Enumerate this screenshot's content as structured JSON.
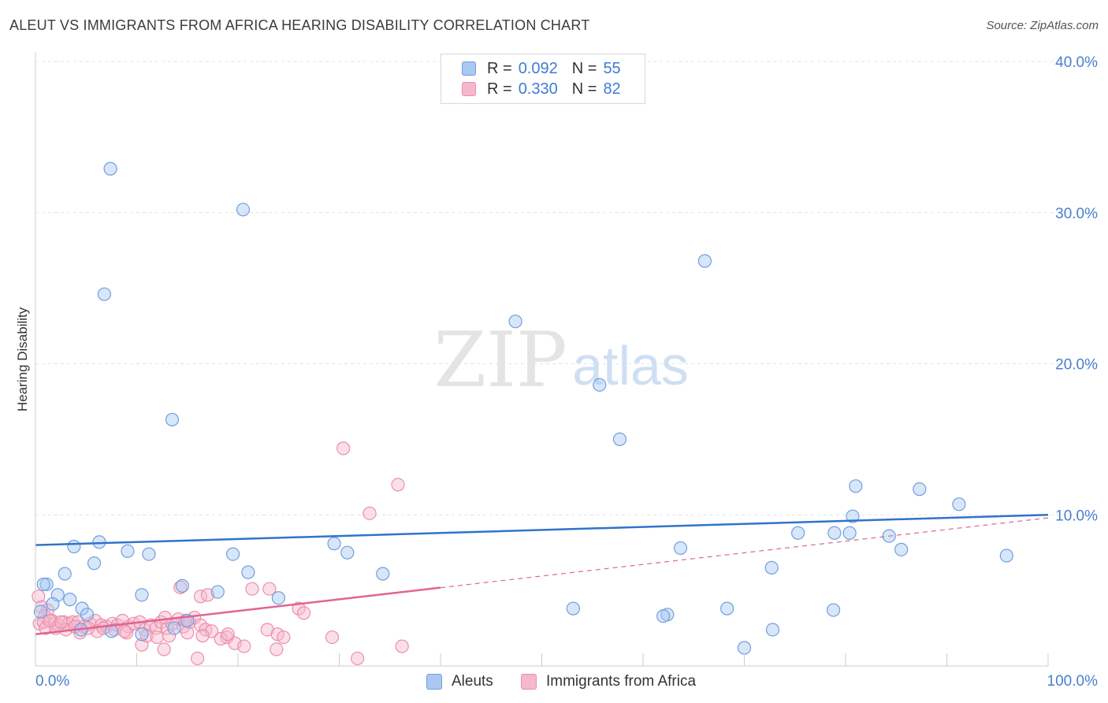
{
  "title": "ALEUT VS IMMIGRANTS FROM AFRICA HEARING DISABILITY CORRELATION CHART",
  "source": "Source: ZipAtlas.com",
  "watermark": {
    "zip": "ZIP",
    "atlas": "atlas"
  },
  "legend": {
    "rows": [
      {
        "r_label": "R =",
        "r_value": "0.092",
        "n_label": "N =",
        "n_value": "55"
      },
      {
        "r_label": "R =",
        "r_value": "0.330",
        "n_label": "N =",
        "n_value": "82"
      }
    ]
  },
  "bottom_legend": {
    "series1": "Aleuts",
    "series2": "Immigrants from Africa"
  },
  "colors": {
    "aleut_fill": "#a9c8f2",
    "aleut_stroke": "#6f9fe0",
    "aleut_line": "#2f74c9",
    "africa_fill": "#f6b8cb",
    "africa_stroke": "#ec8eab",
    "africa_line": "#e2648f",
    "grid": "#e3e3e3",
    "tick_text": "#4a7fcf"
  },
  "chart_data": {
    "type": "scatter",
    "title": "ALEUT VS IMMIGRANTS FROM AFRICA HEARING DISABILITY CORRELATION CHART",
    "xlabel": "",
    "ylabel": "Hearing Disability",
    "xlim": [
      0,
      100
    ],
    "ylim": [
      0,
      40
    ],
    "x_tick_labels": [
      "0.0%",
      "100.0%"
    ],
    "y_ticks": [
      10,
      20,
      30,
      40
    ],
    "y_tick_labels": [
      "10.0%",
      "20.0%",
      "30.0%",
      "40.0%"
    ],
    "series": [
      {
        "name": "Aleuts",
        "r": 0.092,
        "n": 55,
        "trend": {
          "x": [
            0,
            100
          ],
          "y": [
            8.0,
            10.0
          ],
          "dashed_after": null
        },
        "points": [
          [
            7.4,
            32.9
          ],
          [
            20.5,
            30.2
          ],
          [
            6.8,
            24.6
          ],
          [
            66.1,
            26.8
          ],
          [
            47.4,
            22.8
          ],
          [
            55.7,
            18.6
          ],
          [
            57.7,
            15.0
          ],
          [
            13.5,
            16.3
          ],
          [
            81.0,
            11.9
          ],
          [
            87.3,
            11.7
          ],
          [
            91.2,
            10.7
          ],
          [
            80.7,
            9.9
          ],
          [
            75.3,
            8.8
          ],
          [
            78.9,
            8.8
          ],
          [
            80.4,
            8.8
          ],
          [
            84.3,
            8.6
          ],
          [
            95.9,
            7.3
          ],
          [
            85.5,
            7.7
          ],
          [
            63.7,
            7.8
          ],
          [
            72.7,
            6.5
          ],
          [
            3.8,
            7.9
          ],
          [
            6.3,
            8.2
          ],
          [
            9.1,
            7.6
          ],
          [
            11.2,
            7.4
          ],
          [
            19.5,
            7.4
          ],
          [
            29.5,
            8.1
          ],
          [
            30.8,
            7.5
          ],
          [
            5.8,
            6.8
          ],
          [
            21.0,
            6.2
          ],
          [
            34.3,
            6.1
          ],
          [
            1.1,
            5.4
          ],
          [
            2.2,
            4.7
          ],
          [
            0.8,
            5.4
          ],
          [
            2.9,
            6.1
          ],
          [
            14.5,
            5.3
          ],
          [
            18.0,
            4.9
          ],
          [
            10.5,
            4.7
          ],
          [
            24.0,
            4.5
          ],
          [
            1.7,
            4.1
          ],
          [
            3.4,
            4.4
          ],
          [
            4.6,
            3.8
          ],
          [
            0.5,
            3.6
          ],
          [
            5.1,
            3.4
          ],
          [
            53.1,
            3.8
          ],
          [
            68.3,
            3.8
          ],
          [
            78.8,
            3.7
          ],
          [
            62.4,
            3.4
          ],
          [
            62.0,
            3.3
          ],
          [
            72.8,
            2.4
          ],
          [
            70.0,
            1.2
          ],
          [
            7.5,
            2.3
          ],
          [
            10.5,
            2.1
          ],
          [
            13.7,
            2.5
          ],
          [
            4.5,
            2.4
          ],
          [
            15.0,
            3.0
          ]
        ]
      },
      {
        "name": "Immigrants from Africa",
        "r": 0.33,
        "n": 82,
        "trend": {
          "x": [
            0,
            100
          ],
          "y": [
            2.1,
            9.8
          ],
          "solid_until_x": 40
        },
        "points": [
          [
            30.4,
            14.4
          ],
          [
            35.8,
            12.0
          ],
          [
            33.0,
            10.1
          ],
          [
            14.3,
            5.2
          ],
          [
            16.3,
            4.6
          ],
          [
            17.0,
            4.7
          ],
          [
            21.4,
            5.1
          ],
          [
            23.1,
            5.1
          ],
          [
            26.0,
            3.8
          ],
          [
            26.5,
            3.5
          ],
          [
            0.3,
            4.6
          ],
          [
            0.6,
            3.9
          ],
          [
            1.2,
            3.7
          ],
          [
            0.9,
            3.3
          ],
          [
            1.6,
            3.0
          ],
          [
            0.4,
            2.8
          ],
          [
            0.8,
            2.9
          ],
          [
            1.9,
            2.8
          ],
          [
            2.3,
            2.7
          ],
          [
            2.8,
            2.9
          ],
          [
            3.3,
            2.8
          ],
          [
            3.7,
            2.9
          ],
          [
            4.2,
            2.9
          ],
          [
            4.8,
            2.6
          ],
          [
            5.4,
            2.8
          ],
          [
            5.9,
            3.0
          ],
          [
            6.5,
            2.7
          ],
          [
            7.0,
            2.6
          ],
          [
            7.6,
            2.8
          ],
          [
            8.1,
            2.7
          ],
          [
            8.6,
            3.0
          ],
          [
            9.2,
            2.6
          ],
          [
            9.7,
            2.8
          ],
          [
            10.3,
            2.9
          ],
          [
            10.8,
            2.4
          ],
          [
            11.4,
            2.7
          ],
          [
            11.9,
            2.5
          ],
          [
            12.4,
            2.9
          ],
          [
            13.0,
            2.5
          ],
          [
            13.5,
            2.8
          ],
          [
            14.1,
            3.1
          ],
          [
            14.6,
            2.6
          ],
          [
            15.2,
            2.9
          ],
          [
            15.7,
            3.2
          ],
          [
            16.3,
            2.7
          ],
          [
            16.8,
            2.4
          ],
          [
            17.4,
            2.3
          ],
          [
            18.9,
            1.9
          ],
          [
            19.7,
            1.5
          ],
          [
            22.9,
            2.4
          ],
          [
            23.9,
            2.1
          ],
          [
            24.5,
            1.9
          ],
          [
            23.8,
            1.1
          ],
          [
            29.3,
            1.9
          ],
          [
            36.2,
            1.3
          ],
          [
            31.8,
            0.5
          ],
          [
            16.0,
            0.5
          ],
          [
            12.7,
            1.1
          ],
          [
            10.5,
            1.4
          ],
          [
            20.6,
            1.3
          ],
          [
            1.0,
            2.5
          ],
          [
            2.0,
            2.5
          ],
          [
            3.0,
            2.4
          ],
          [
            4.4,
            2.2
          ],
          [
            6.1,
            2.3
          ],
          [
            7.8,
            2.4
          ],
          [
            9.0,
            2.2
          ],
          [
            11.0,
            2.0
          ],
          [
            12.0,
            1.9
          ],
          [
            13.2,
            2.0
          ],
          [
            15.0,
            2.2
          ],
          [
            16.5,
            2.0
          ],
          [
            18.3,
            1.8
          ],
          [
            19.0,
            2.1
          ],
          [
            14.8,
            3.0
          ],
          [
            12.8,
            3.2
          ],
          [
            8.8,
            2.3
          ],
          [
            6.7,
            2.5
          ],
          [
            5.2,
            2.5
          ],
          [
            3.9,
            2.6
          ],
          [
            2.5,
            2.9
          ],
          [
            1.4,
            3.0
          ]
        ]
      }
    ]
  }
}
